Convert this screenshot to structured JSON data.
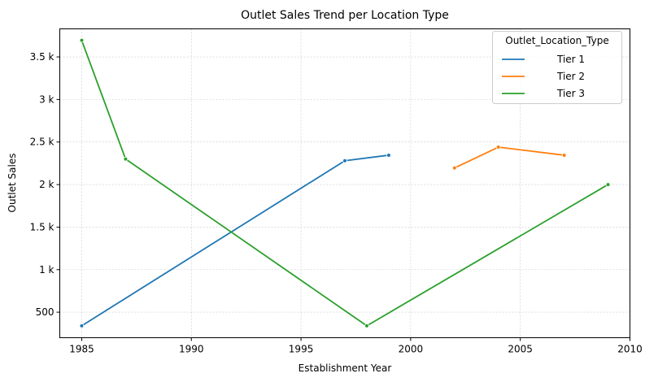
{
  "chart_data": {
    "type": "line",
    "title": "Outlet Sales Trend per Location Type",
    "xlabel": "Establishment Year",
    "ylabel": "Outlet Sales",
    "xlim": [
      1984,
      2010
    ],
    "ylim": [
      200,
      3830
    ],
    "xticks": [
      1985,
      1990,
      1995,
      2000,
      2005,
      2010
    ],
    "xtick_labels": [
      "1985",
      "1990",
      "1995",
      "2000",
      "2005",
      "2010"
    ],
    "yticks": [
      500,
      1000,
      1500,
      2000,
      2500,
      3000,
      3500
    ],
    "ytick_labels": [
      "500",
      "1 k",
      "1.5 k",
      "2 k",
      "2.5 k",
      "3 k",
      "3.5 k"
    ],
    "grid": true,
    "legend": {
      "title": "Outlet_Location_Type",
      "placement": "top-right"
    },
    "series": [
      {
        "name": "Tier 1",
        "color": "#1f77b4",
        "points": [
          {
            "x": 1985,
            "y": 340
          },
          {
            "x": 1997,
            "y": 2280
          },
          {
            "x": 1999,
            "y": 2345
          }
        ]
      },
      {
        "name": "Tier 2",
        "color": "#ff7f0e",
        "points": [
          {
            "x": 2002,
            "y": 2195
          },
          {
            "x": 2004,
            "y": 2440
          },
          {
            "x": 2007,
            "y": 2345
          }
        ]
      },
      {
        "name": "Tier 3",
        "color": "#2ca02c",
        "points": [
          {
            "x": 1985,
            "y": 3695
          },
          {
            "x": 1987,
            "y": 2300
          },
          {
            "x": 1998,
            "y": 340
          },
          {
            "x": 2009,
            "y": 2000
          }
        ]
      }
    ]
  }
}
